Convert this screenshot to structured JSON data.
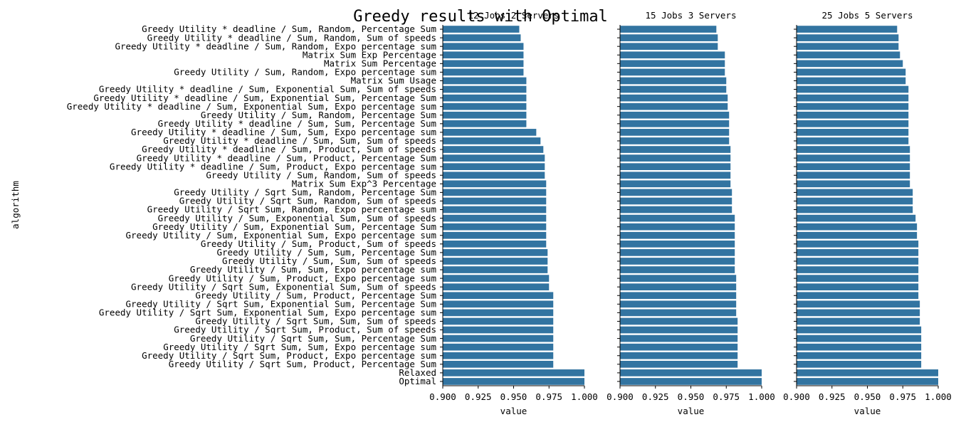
{
  "chart_data": {
    "type": "bar",
    "orientation": "horizontal",
    "title": "Greedy results with Optimal",
    "ylabel": "algorithm",
    "xlabel": "value",
    "xlim": [
      0.9,
      1.0
    ],
    "xticks": [
      "0.900",
      "0.925",
      "0.950",
      "0.975",
      "1.000"
    ],
    "bar_color": "#3274a1",
    "categories": [
      "Greedy Utility * deadline / Sum, Random, Percentage Sum",
      "Greedy Utility * deadline / Sum, Random, Sum of speeds",
      "Greedy Utility * deadline / Sum, Random, Expo percentage sum",
      "Matrix Sum Exp Percentage",
      "Matrix Sum Percentage",
      "Greedy Utility / Sum, Random, Expo percentage sum",
      "Matrix Sum Usage",
      "Greedy Utility * deadline / Sum, Exponential Sum, Sum of speeds",
      "Greedy Utility * deadline / Sum, Exponential Sum, Percentage Sum",
      "Greedy Utility * deadline / Sum, Exponential Sum, Expo percentage sum",
      "Greedy Utility / Sum, Random, Percentage Sum",
      "Greedy Utility * deadline / Sum, Sum, Percentage Sum",
      "Greedy Utility * deadline / Sum, Sum, Expo percentage sum",
      "Greedy Utility * deadline / Sum, Sum, Sum of speeds",
      "Greedy Utility * deadline / Sum, Product, Sum of speeds",
      "Greedy Utility * deadline / Sum, Product, Percentage Sum",
      "Greedy Utility * deadline / Sum, Product, Expo percentage sum",
      "Greedy Utility / Sum, Random, Sum of speeds",
      "Matrix Sum Exp^3 Percentage",
      "Greedy Utility / Sqrt Sum, Random, Percentage Sum",
      "Greedy Utility / Sqrt Sum, Random, Sum of speeds",
      "Greedy Utility / Sqrt Sum, Random, Expo percentage sum",
      "Greedy Utility / Sum, Exponential Sum, Sum of speeds",
      "Greedy Utility / Sum, Exponential Sum, Percentage Sum",
      "Greedy Utility / Sum, Exponential Sum, Expo percentage sum",
      "Greedy Utility / Sum, Product, Sum of speeds",
      "Greedy Utility / Sum, Sum, Percentage Sum",
      "Greedy Utility / Sum, Sum, Sum of speeds",
      "Greedy Utility / Sum, Sum, Expo percentage sum",
      "Greedy Utility / Sum, Product, Expo percentage sum",
      "Greedy Utility / Sqrt Sum, Exponential Sum, Sum of speeds",
      "Greedy Utility / Sum, Product, Percentage Sum",
      "Greedy Utility / Sqrt Sum, Exponential Sum, Percentage Sum",
      "Greedy Utility / Sqrt Sum, Exponential Sum, Expo percentage sum",
      "Greedy Utility / Sqrt Sum, Sum, Sum of speeds",
      "Greedy Utility / Sqrt Sum, Product, Sum of speeds",
      "Greedy Utility / Sqrt Sum, Sum, Percentage Sum",
      "Greedy Utility / Sqrt Sum, Sum, Expo percentage sum",
      "Greedy Utility / Sqrt Sum, Product, Expo percentage sum",
      "Greedy Utility / Sqrt Sum, Product, Percentage Sum",
      "Relaxed",
      "Optimal"
    ],
    "panels": [
      {
        "title": "12 Jobs 2 Servers",
        "values": [
          0.954,
          0.955,
          0.957,
          0.957,
          0.957,
          0.957,
          0.959,
          0.959,
          0.959,
          0.959,
          0.959,
          0.959,
          0.966,
          0.969,
          0.971,
          0.972,
          0.972,
          0.972,
          0.973,
          0.973,
          0.973,
          0.973,
          0.973,
          0.973,
          0.973,
          0.973,
          0.974,
          0.974,
          0.974,
          0.975,
          0.975,
          0.978,
          0.978,
          0.978,
          0.978,
          0.978,
          0.978,
          0.978,
          0.978,
          0.978,
          1.0,
          1.0
        ]
      },
      {
        "title": "15 Jobs 3 Servers",
        "values": [
          0.968,
          0.969,
          0.969,
          0.974,
          0.974,
          0.974,
          0.975,
          0.975,
          0.976,
          0.976,
          0.977,
          0.977,
          0.977,
          0.977,
          0.978,
          0.978,
          0.978,
          0.978,
          0.978,
          0.979,
          0.979,
          0.979,
          0.981,
          0.981,
          0.981,
          0.981,
          0.981,
          0.981,
          0.981,
          0.982,
          0.982,
          0.982,
          0.982,
          0.982,
          0.983,
          0.983,
          0.983,
          0.983,
          0.983,
          0.983,
          1.0,
          1.0
        ]
      },
      {
        "title": "25 Jobs 5 Servers",
        "values": [
          0.971,
          0.972,
          0.972,
          0.973,
          0.975,
          0.977,
          0.977,
          0.979,
          0.979,
          0.979,
          0.979,
          0.979,
          0.979,
          0.979,
          0.98,
          0.98,
          0.98,
          0.98,
          0.98,
          0.982,
          0.982,
          0.982,
          0.984,
          0.985,
          0.985,
          0.986,
          0.986,
          0.986,
          0.986,
          0.986,
          0.986,
          0.986,
          0.987,
          0.987,
          0.987,
          0.988,
          0.988,
          0.988,
          0.988,
          0.988,
          1.0,
          1.0
        ]
      }
    ]
  }
}
